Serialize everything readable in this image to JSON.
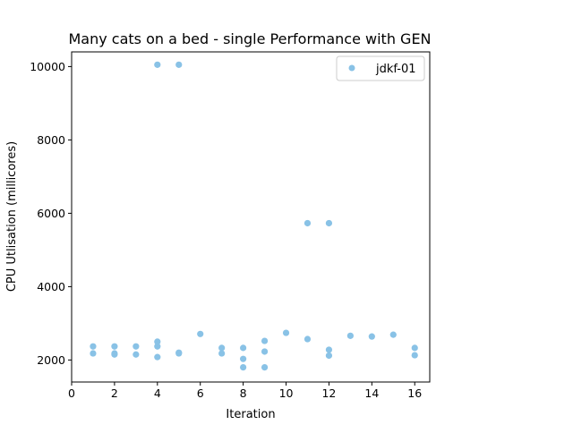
{
  "chart_data": {
    "type": "scatter",
    "title": "Many cats on a bed - single Performance with GEN",
    "xlabel": "Iteration",
    "ylabel": "CPU Utlisation (millicores)",
    "xlim": [
      0,
      16.7
    ],
    "ylim": [
      1400,
      10400
    ],
    "xticks": [
      0,
      2,
      4,
      6,
      8,
      10,
      12,
      14,
      16
    ],
    "yticks": [
      2000,
      4000,
      6000,
      8000,
      10000
    ],
    "grid": false,
    "legend_position": "top-right",
    "series": [
      {
        "name": "jdkf-01",
        "color": "#89c2e6",
        "points": [
          [
            1,
            2370
          ],
          [
            1,
            2180
          ],
          [
            2,
            2370
          ],
          [
            2,
            2180
          ],
          [
            2,
            2150
          ],
          [
            3,
            2370
          ],
          [
            3,
            2150
          ],
          [
            4,
            10050
          ],
          [
            4,
            2500
          ],
          [
            4,
            2370
          ],
          [
            4,
            2080
          ],
          [
            5,
            10050
          ],
          [
            5,
            2200
          ],
          [
            5,
            2180
          ],
          [
            6,
            2710
          ],
          [
            7,
            2330
          ],
          [
            7,
            2180
          ],
          [
            8,
            2330
          ],
          [
            8,
            2030
          ],
          [
            8,
            1800
          ],
          [
            9,
            2520
          ],
          [
            9,
            2230
          ],
          [
            9,
            1800
          ],
          [
            10,
            2740
          ],
          [
            11,
            5730
          ],
          [
            11,
            2570
          ],
          [
            12,
            5730
          ],
          [
            12,
            2280
          ],
          [
            12,
            2120
          ],
          [
            13,
            2660
          ],
          [
            14,
            2640
          ],
          [
            15,
            2690
          ],
          [
            16,
            2330
          ],
          [
            16,
            2130
          ]
        ]
      }
    ]
  }
}
